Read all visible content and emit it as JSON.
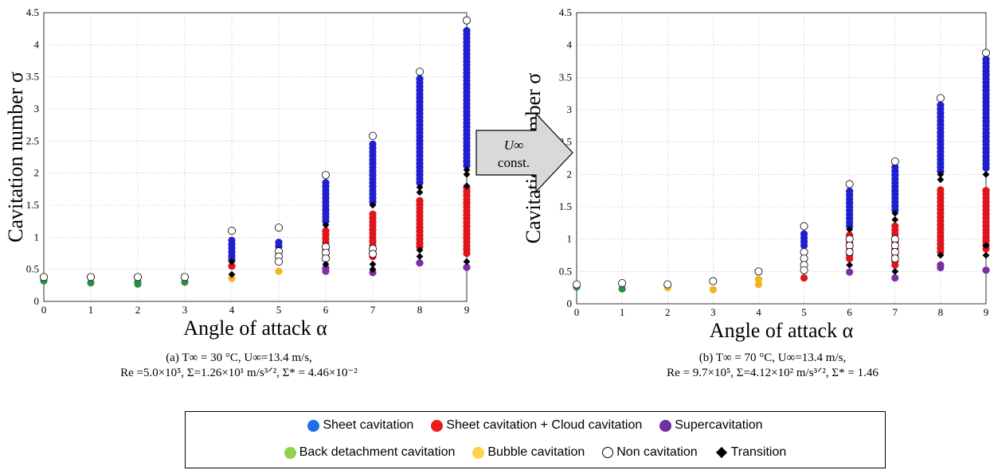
{
  "colors": {
    "sheet": "#1f1fd0",
    "sheet_cloud": "#e0141c",
    "super": "#7b2fa6",
    "back": "#2e8a4a",
    "bubble": "#f2b421",
    "non": "#ffffff",
    "transition": "#000000",
    "legend_sheet": "#1f6fe8",
    "legend_sheet_cloud": "#ee1c1c",
    "legend_super": "#7030a0",
    "legend_back": "#92d050",
    "legend_bubble": "#ffd24a"
  },
  "arrow": {
    "line1": "U∞",
    "line2": "const."
  },
  "chart_data": [
    {
      "type": "scatter",
      "xlabel": "Angle of attack α",
      "ylabel": "Cavitation number σ",
      "xlim": [
        0,
        9
      ],
      "ylim": [
        0,
        4.5
      ],
      "xticks": [
        "0",
        "1",
        "2",
        "3",
        "4",
        "5",
        "6",
        "7",
        "8",
        "9"
      ],
      "yticks": [
        "0",
        "0.5",
        "1",
        "1.5",
        "2",
        "2.5",
        "3",
        "3.5",
        "4",
        "4.5"
      ],
      "grid": true,
      "caption_line1": "(a) T∞ = 30 °C, U∞=13.4 m/s,",
      "caption_line2": "Re =5.0×10⁵, Σ=1.26×10¹ m/s³ᐟ², Σ* = 4.46×10⁻²",
      "columns": [
        {
          "x": 0,
          "non": [
            0.38
          ],
          "back": [
            0.32
          ]
        },
        {
          "x": 1,
          "non": [
            0.38
          ],
          "back": [
            0.29
          ]
        },
        {
          "x": 2,
          "non": [
            0.38
          ],
          "back": [
            0.3,
            0.27
          ]
        },
        {
          "x": 3,
          "non": [
            0.38
          ],
          "back": [
            0.3
          ]
        },
        {
          "x": 4,
          "non": [
            1.1
          ],
          "sheet_range": [
            0.65,
            1.0
          ],
          "sheet_cloud": [
            0.55
          ],
          "transition": [
            0.62,
            0.42
          ],
          "bubble": [
            0.36
          ]
        },
        {
          "x": 5,
          "non": [
            1.15,
            0.78,
            0.7,
            0.62
          ],
          "sheet_range": [
            0.86,
            0.97
          ],
          "bubble": [
            0.47
          ]
        },
        {
          "x": 6,
          "non": [
            1.97,
            0.85,
            0.76,
            0.67
          ],
          "sheet_range": [
            1.25,
            1.88
          ],
          "transition": [
            1.19,
            0.58
          ],
          "sheet_cloud_range": [
            0.74,
            1.15
          ],
          "super": [
            0.52,
            0.47
          ]
        },
        {
          "x": 7,
          "non": [
            2.58,
            0.82,
            0.74
          ],
          "sheet_range": [
            1.55,
            2.48
          ],
          "transition": [
            1.5,
            0.58,
            0.5
          ],
          "sheet_cloud_range": [
            0.7,
            1.4
          ],
          "super": [
            0.45
          ]
        },
        {
          "x": 8,
          "non": [
            3.58
          ],
          "sheet_range": [
            1.85,
            3.52
          ],
          "transition": [
            1.78,
            1.7,
            0.8,
            0.7
          ],
          "sheet_cloud_range": [
            0.85,
            1.62
          ],
          "super": [
            0.6
          ]
        },
        {
          "x": 9,
          "non": [
            4.38
          ],
          "sheet_range": [
            2.12,
            4.24
          ],
          "transition": [
            2.05,
            1.98,
            1.8,
            0.62
          ],
          "sheet_cloud_range": [
            0.75,
            1.78
          ],
          "super": [
            0.53
          ]
        }
      ]
    },
    {
      "type": "scatter",
      "xlabel": "Angle of attack α",
      "ylabel": "Cavitation number σ",
      "xlim": [
        0,
        9
      ],
      "ylim": [
        0,
        4.5
      ],
      "xticks": [
        "0",
        "1",
        "2",
        "3",
        "4",
        "5",
        "6",
        "7",
        "8",
        "9"
      ],
      "yticks": [
        "0",
        "0.5",
        "1",
        "1.5",
        "2",
        "2.5",
        "3",
        "3.5",
        "4",
        "4.5"
      ],
      "grid": true,
      "caption_line1": "(b) T∞ = 70 °C, U∞=13.4 m/s,",
      "caption_line2": "Re = 9.7×10⁵, Σ=4.12×10² m/s³ᐟ², Σ* = 1.46",
      "columns": [
        {
          "x": 0,
          "non": [
            0.3
          ],
          "back": [
            0.26
          ]
        },
        {
          "x": 1,
          "non": [
            0.32
          ],
          "back": [
            0.23
          ]
        },
        {
          "x": 2,
          "non": [
            0.3
          ],
          "bubble": [
            0.25
          ]
        },
        {
          "x": 3,
          "non": [
            0.35
          ],
          "bubble": [
            0.22
          ]
        },
        {
          "x": 4,
          "non": [
            0.5
          ],
          "bubble": [
            0.38,
            0.3
          ]
        },
        {
          "x": 5,
          "non": [
            1.2,
            0.8,
            0.7,
            0.6,
            0.52
          ],
          "sheet_range": [
            0.9,
            1.1
          ],
          "sheet_cloud": [
            0.4
          ]
        },
        {
          "x": 6,
          "non": [
            1.85,
            1.0,
            0.9,
            0.8
          ],
          "sheet_range": [
            1.2,
            1.75
          ],
          "transition": [
            1.15,
            0.6
          ],
          "sheet_cloud_range": [
            0.7,
            1.1
          ],
          "super": [
            0.49
          ]
        },
        {
          "x": 7,
          "non": [
            2.2,
            1.0,
            0.9,
            0.8,
            0.7
          ],
          "sheet_range": [
            1.45,
            2.12
          ],
          "transition": [
            1.4,
            1.3,
            0.5
          ],
          "sheet_cloud_range": [
            0.6,
            1.25
          ],
          "super": [
            0.4
          ]
        },
        {
          "x": 8,
          "non": [
            3.18
          ],
          "sheet_range": [
            2.05,
            3.12
          ],
          "transition": [
            2.0,
            1.92,
            0.75
          ],
          "sheet_cloud_range": [
            0.8,
            1.8
          ],
          "super": [
            0.6,
            0.56
          ]
        },
        {
          "x": 9,
          "non": [
            3.88
          ],
          "sheet_range": [
            2.1,
            3.8
          ],
          "transition": [
            2.0,
            0.9,
            0.75
          ],
          "sheet_cloud_range": [
            0.85,
            1.8
          ],
          "super": [
            0.52
          ]
        }
      ]
    }
  ],
  "legend": {
    "sheet": "Sheet cavitation",
    "sheet_cloud": "Sheet cavitation + Cloud cavitation",
    "super": "Supercavitation",
    "back": "Back detachment cavitation",
    "bubble": "Bubble cavitation",
    "non": "Non cavitation",
    "transition": "Transition"
  }
}
